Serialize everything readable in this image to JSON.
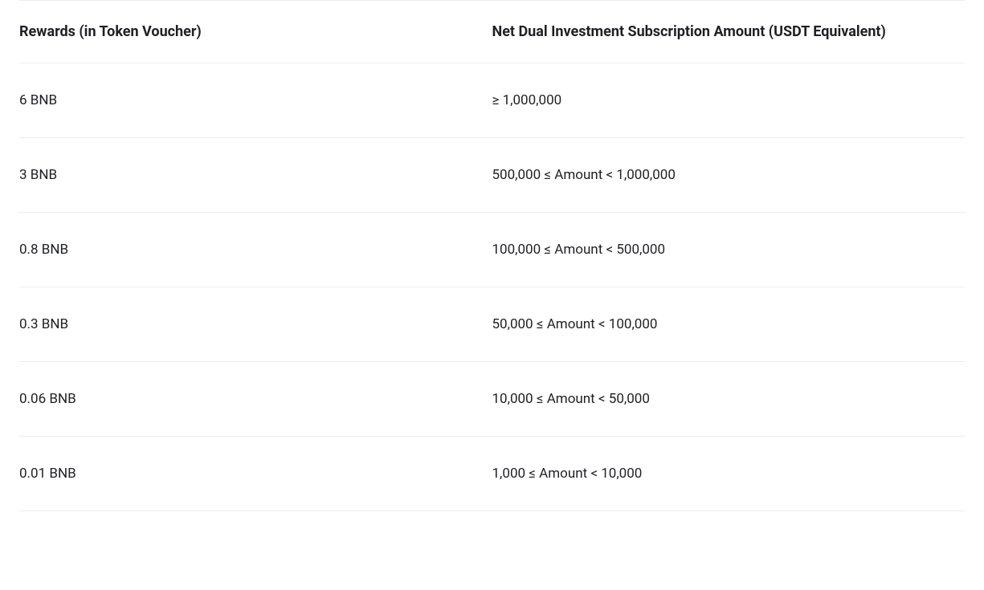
{
  "rewards_table": {
    "type": "table",
    "columns": [
      {
        "label": "Rewards (in Token Voucher)",
        "width_pct": 50,
        "align": "left"
      },
      {
        "label": "Net Dual Investment Subscription Amount (USDT Equivalent)",
        "width_pct": 50,
        "align": "left"
      }
    ],
    "rows": [
      [
        "6 BNB",
        "≥ 1,000,000"
      ],
      [
        "3 BNB",
        "500,000 ≤ Amount < 1,000,000"
      ],
      [
        "0.8 BNB",
        "100,000 ≤ Amount < 500,000"
      ],
      [
        "0.3 BNB",
        "50,000 ≤ Amount < 100,000"
      ],
      [
        "0.06 BNB",
        "10,000 ≤ Amount < 50,000"
      ],
      [
        "0.01 BNB",
        "1,000 ≤ Amount < 10,000"
      ]
    ],
    "header_fontsize": 18,
    "header_fontweight": 700,
    "cell_fontsize": 17,
    "cell_fontweight": 400,
    "text_color": "#1e2026",
    "background_color": "#ffffff",
    "border_color": "#eaecef",
    "header_padding_y": 28,
    "cell_padding_y": 36
  }
}
